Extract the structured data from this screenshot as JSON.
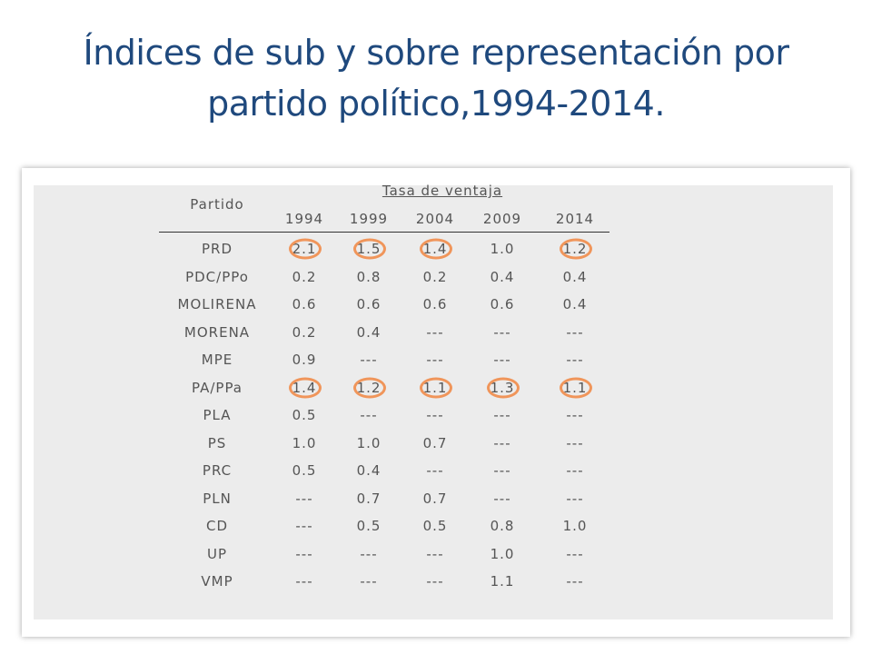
{
  "title_line1": "Índices de sub y sobre representación por",
  "title_line2": "partido político,1994-2014.",
  "table": {
    "row_header": "Partido",
    "group_header": "Tasa de ventaja",
    "years": [
      "1994",
      "1999",
      "2004",
      "2009",
      "2014"
    ],
    "rows": [
      {
        "party": "PRD",
        "values": [
          "2.1",
          "1.5",
          "1.4",
          "1.0",
          "1.2"
        ],
        "circled": [
          true,
          true,
          true,
          false,
          true
        ]
      },
      {
        "party": "PDC/PPo",
        "values": [
          "0.2",
          "0.8",
          "0.2",
          "0.4",
          "0.4"
        ],
        "circled": [
          false,
          false,
          false,
          false,
          false
        ]
      },
      {
        "party": "MOLIRENA",
        "values": [
          "0.6",
          "0.6",
          "0.6",
          "0.6",
          "0.4"
        ],
        "circled": [
          false,
          false,
          false,
          false,
          false
        ]
      },
      {
        "party": "MORENA",
        "values": [
          "0.2",
          "0.4",
          "---",
          "---",
          "---"
        ],
        "circled": [
          false,
          false,
          false,
          false,
          false
        ]
      },
      {
        "party": "MPE",
        "values": [
          "0.9",
          "---",
          "---",
          "---",
          "---"
        ],
        "circled": [
          false,
          false,
          false,
          false,
          false
        ]
      },
      {
        "party": "PA/PPa",
        "values": [
          "1.4",
          "1.2",
          "1.1",
          "1.3",
          "1.1"
        ],
        "circled": [
          true,
          true,
          true,
          true,
          true
        ]
      },
      {
        "party": "PLA",
        "values": [
          "0.5",
          "---",
          "---",
          "---",
          "---"
        ],
        "circled": [
          false,
          false,
          false,
          false,
          false
        ]
      },
      {
        "party": "PS",
        "values": [
          "1.0",
          "1.0",
          "0.7",
          "---",
          "---"
        ],
        "circled": [
          false,
          false,
          false,
          false,
          false
        ]
      },
      {
        "party": "PRC",
        "values": [
          "0.5",
          "0.4",
          "---",
          "---",
          "---"
        ],
        "circled": [
          false,
          false,
          false,
          false,
          false
        ]
      },
      {
        "party": "PLN",
        "values": [
          "---",
          "0.7",
          "0.7",
          "---",
          "---"
        ],
        "circled": [
          false,
          false,
          false,
          false,
          false
        ]
      },
      {
        "party": "CD",
        "values": [
          "---",
          "0.5",
          "0.5",
          "0.8",
          "1.0"
        ],
        "circled": [
          false,
          false,
          false,
          false,
          false
        ]
      },
      {
        "party": "UP",
        "values": [
          "---",
          "---",
          "---",
          "1.0",
          "---"
        ],
        "circled": [
          false,
          false,
          false,
          false,
          false
        ]
      },
      {
        "party": "VMP",
        "values": [
          "---",
          "---",
          "---",
          "1.1",
          "---"
        ],
        "circled": [
          false,
          false,
          false,
          false,
          false
        ]
      }
    ]
  },
  "colors": {
    "title": "#1f497d",
    "highlight_circle": "#f0955a",
    "panel_background": "#ececec"
  }
}
